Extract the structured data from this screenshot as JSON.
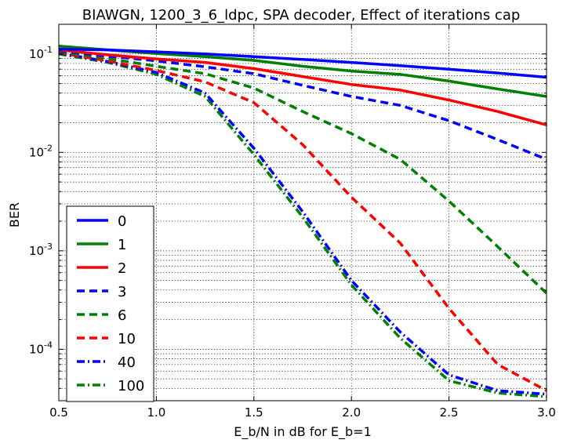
{
  "chart_data": {
    "type": "line",
    "title": "BIAWGN, 1200_3_6_ldpc, SPA decoder, Effect of iterations cap",
    "xlabel": "E_b/N in dB for E_b=1",
    "ylabel": "BER",
    "xlim": [
      0.5,
      3.0
    ],
    "ylim": [
      3e-05,
      0.2
    ],
    "yscale": "log",
    "grid": true,
    "legend_position": "lower-left",
    "x_ticks": [
      0.5,
      1.0,
      1.5,
      2.0,
      2.5,
      3.0
    ],
    "x_tick_labels": [
      "0.5",
      "1.0",
      "1.5",
      "2.0",
      "2.5",
      "3.0"
    ],
    "y_ticks": [
      0.0001,
      0.001,
      0.01,
      0.1
    ],
    "y_tick_labels": [
      {
        "base": "10",
        "exp": "-4"
      },
      {
        "base": "10",
        "exp": "-3"
      },
      {
        "base": "10",
        "exp": "-2"
      },
      {
        "base": "10",
        "exp": "-1"
      }
    ],
    "x": [
      0.5,
      0.75,
      1.0,
      1.25,
      1.5,
      1.75,
      2.0,
      2.25,
      2.5,
      2.75,
      3.0
    ],
    "series": [
      {
        "name": "0",
        "color": "#0000ff",
        "style": "solid",
        "values": [
          0.112,
          0.11,
          0.105,
          0.1,
          0.094,
          0.088,
          0.082,
          0.076,
          0.07,
          0.064,
          0.058
        ]
      },
      {
        "name": "1",
        "color": "#008000",
        "style": "solid",
        "values": [
          0.12,
          0.11,
          0.101,
          0.094,
          0.086,
          0.075,
          0.067,
          0.062,
          0.053,
          0.044,
          0.037
        ]
      },
      {
        "name": "2",
        "color": "#ff0000",
        "style": "solid",
        "values": [
          0.11,
          0.098,
          0.089,
          0.082,
          0.071,
          0.059,
          0.049,
          0.043,
          0.034,
          0.026,
          0.019
        ]
      },
      {
        "name": "3",
        "color": "#0000ff",
        "style": "dashed",
        "values": [
          0.108,
          0.095,
          0.085,
          0.074,
          0.063,
          0.048,
          0.037,
          0.03,
          0.021,
          0.0135,
          0.0085
        ]
      },
      {
        "name": "6",
        "color": "#008000",
        "style": "dashed",
        "values": [
          0.105,
          0.09,
          0.075,
          0.063,
          0.045,
          0.026,
          0.0155,
          0.0085,
          0.0032,
          0.0011,
          0.00037
        ]
      },
      {
        "name": "10",
        "color": "#ff0000",
        "style": "dashed",
        "values": [
          0.103,
          0.085,
          0.068,
          0.052,
          0.032,
          0.012,
          0.0035,
          0.0012,
          0.00026,
          7e-05,
          3.8e-05
        ]
      },
      {
        "name": "40",
        "color": "#0000ff",
        "style": "dashdot",
        "values": [
          0.102,
          0.084,
          0.065,
          0.04,
          0.011,
          0.0025,
          0.0005,
          0.00015,
          5.5e-05,
          3.8e-05,
          3.5e-05
        ]
      },
      {
        "name": "100",
        "color": "#008000",
        "style": "dashdot",
        "values": [
          0.1,
          0.082,
          0.062,
          0.037,
          0.0095,
          0.0022,
          0.00045,
          0.00013,
          4.8e-05,
          3.6e-05,
          3.3e-05
        ]
      }
    ]
  }
}
